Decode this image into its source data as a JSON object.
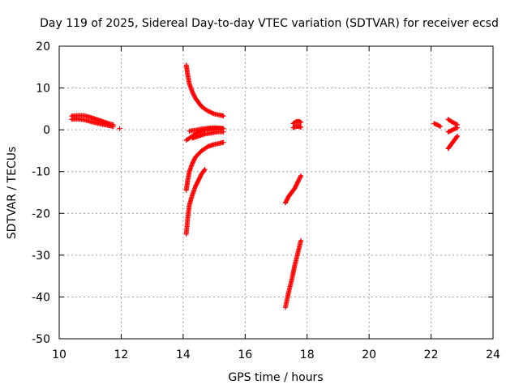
{
  "chart_data": {
    "type": "scatter",
    "title": "Day 119 of 2025, Sidereal Day-to-day VTEC variation (SDTVAR) for receiver ecsd",
    "xlabel": "GPS time / hours",
    "ylabel": "SDTVAR / TECUs",
    "xlim": [
      10,
      24
    ],
    "ylim": [
      -50,
      20
    ],
    "xticks": [
      "10",
      "12",
      "14",
      "16",
      "18",
      "20",
      "22",
      "24"
    ],
    "yticks": [
      "20",
      "10",
      "0",
      "-10",
      "-20",
      "-30",
      "-40",
      "-50"
    ],
    "grid": true,
    "marker": "+",
    "color": "#ff0000",
    "series": [
      {
        "x": [
          10.4,
          10.6,
          10.8,
          11.0,
          11.2,
          11.4,
          11.6,
          11.75
        ],
        "y": [
          2.5,
          2.6,
          2.4,
          2.0,
          1.6,
          1.3,
          1.0,
          0.8
        ]
      },
      {
        "x": [
          10.4,
          10.6,
          10.8,
          11.0,
          11.2,
          11.4,
          11.6,
          11.75
        ],
        "y": [
          3.3,
          3.4,
          3.4,
          3.0,
          2.5,
          2.0,
          1.5,
          1.2
        ]
      },
      {
        "x": [
          11.95
        ],
        "y": [
          0.3
        ]
      },
      {
        "x": [
          14.1,
          14.15,
          14.2,
          14.3,
          14.4,
          14.6,
          14.8,
          15.0,
          15.2,
          15.3
        ],
        "y": [
          15.5,
          13.0,
          11.0,
          9.0,
          7.5,
          5.5,
          4.5,
          3.8,
          3.5,
          3.3
        ]
      },
      {
        "x": [
          14.1,
          14.3,
          14.5,
          14.7,
          14.9,
          15.1,
          15.3
        ],
        "y": [
          -2.5,
          -1.5,
          -0.5,
          0.0,
          0.2,
          0.3,
          0.3
        ]
      },
      {
        "x": [
          14.2,
          14.4,
          14.6,
          14.8,
          15.0,
          15.2,
          15.3
        ],
        "y": [
          -0.3,
          -0.1,
          0.2,
          0.4,
          0.5,
          0.4,
          0.3
        ]
      },
      {
        "x": [
          14.3,
          14.5,
          14.7,
          14.9,
          15.1,
          15.3
        ],
        "y": [
          -2.0,
          -1.5,
          -1.0,
          -0.8,
          -0.5,
          -0.5
        ]
      },
      {
        "x": [
          14.1,
          14.15,
          14.2,
          14.3,
          14.4,
          14.6,
          14.8,
          15.0,
          15.2,
          15.3
        ],
        "y": [
          -14.5,
          -12.0,
          -10.0,
          -8.0,
          -6.5,
          -5.0,
          -4.0,
          -3.5,
          -3.2,
          -3.0
        ]
      },
      {
        "x": [
          14.1,
          14.15,
          14.2,
          14.3,
          14.4,
          14.5,
          14.6,
          14.7
        ],
        "y": [
          -25.0,
          -21.0,
          -18.0,
          -15.5,
          -13.5,
          -12.0,
          -10.5,
          -9.5
        ]
      },
      {
        "x": [
          17.3,
          17.4,
          17.5,
          17.6,
          17.7,
          17.8
        ],
        "y": [
          -17.5,
          -16.0,
          -15.0,
          -14.0,
          -12.5,
          -11.0
        ]
      },
      {
        "x": [
          17.55,
          17.65,
          17.75,
          17.8
        ],
        "y": [
          1.5,
          2.0,
          2.0,
          1.8
        ]
      },
      {
        "x": [
          17.55,
          17.65,
          17.75,
          17.8
        ],
        "y": [
          0.5,
          0.8,
          0.8,
          0.6
        ]
      },
      {
        "x": [
          17.3,
          17.4,
          17.5,
          17.6,
          17.7,
          17.8
        ],
        "y": [
          -42.5,
          -39.0,
          -36.0,
          -32.5,
          -29.5,
          -26.5
        ]
      },
      {
        "x": [
          22.1,
          22.2,
          22.3
        ],
        "y": [
          1.5,
          1.2,
          0.8
        ]
      },
      {
        "x": [
          22.55,
          22.65,
          22.75,
          22.85
        ],
        "y": [
          2.5,
          2.0,
          1.6,
          1.2
        ]
      },
      {
        "x": [
          22.55,
          22.65,
          22.75,
          22.85
        ],
        "y": [
          -0.5,
          -0.2,
          0.2,
          0.5
        ]
      },
      {
        "x": [
          22.55,
          22.65,
          22.75,
          22.85
        ],
        "y": [
          -4.5,
          -3.5,
          -2.5,
          -1.5
        ]
      }
    ]
  }
}
